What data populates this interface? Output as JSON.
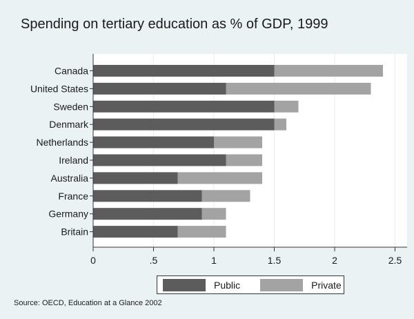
{
  "chart_data": {
    "type": "bar",
    "orientation": "horizontal",
    "stacked": true,
    "title": "Spending on tertiary education as % of GDP, 1999",
    "source": "Source:  OECD, Education at a Glance 2002",
    "categories": [
      "Canada",
      "United States",
      "Sweden",
      "Denmark",
      "Netherlands",
      "Ireland",
      "Australia",
      "France",
      "Germany",
      "Britain"
    ],
    "series": [
      {
        "name": "Public",
        "color": "#5c5c5c",
        "values": [
          1.5,
          1.1,
          1.5,
          1.5,
          1.0,
          1.1,
          0.7,
          0.9,
          0.9,
          0.7
        ]
      },
      {
        "name": "Private",
        "color": "#a3a3a3",
        "values": [
          0.9,
          1.2,
          0.2,
          0.1,
          0.4,
          0.3,
          0.7,
          0.4,
          0.2,
          0.4
        ]
      }
    ],
    "xlim": [
      0,
      2.6
    ],
    "xticks": [
      0,
      0.5,
      1,
      1.5,
      2,
      2.5
    ],
    "xtick_labels": [
      "0",
      ".5",
      "1",
      "1.5",
      "2",
      "2.5"
    ],
    "grid": true,
    "legend_position": "bottom"
  }
}
